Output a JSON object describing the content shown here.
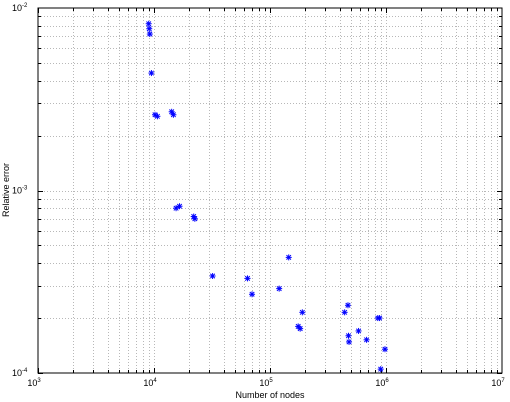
{
  "chart_data": {
    "type": "scatter",
    "xlabel": "Number of nodes",
    "ylabel": "Relative error",
    "xscale": "log",
    "yscale": "log",
    "xlim": [
      1000,
      10000000
    ],
    "ylim": [
      0.0001,
      0.01
    ],
    "grid": "on",
    "marker": "*",
    "colors": {
      "marker": "#0000ff",
      "grid": "#b8b8b8",
      "axes": "#000000"
    },
    "x_ticks": [
      {
        "base": "10",
        "exp": "3"
      },
      {
        "base": "10",
        "exp": "4"
      },
      {
        "base": "10",
        "exp": "5"
      },
      {
        "base": "10",
        "exp": "6"
      },
      {
        "base": "10",
        "exp": "7"
      }
    ],
    "y_ticks": [
      {
        "base": "10",
        "exp": "-4"
      },
      {
        "base": "10",
        "exp": "-3"
      },
      {
        "base": "10",
        "exp": "-2"
      }
    ],
    "points": [
      {
        "x": 9000,
        "y": 0.0082
      },
      {
        "x": 9100,
        "y": 0.0077
      },
      {
        "x": 9200,
        "y": 0.0072
      },
      {
        "x": 9500,
        "y": 0.0044
      },
      {
        "x": 10200,
        "y": 0.0026
      },
      {
        "x": 10700,
        "y": 0.00255
      },
      {
        "x": 14200,
        "y": 0.0027
      },
      {
        "x": 14700,
        "y": 0.0026
      },
      {
        "x": 15500,
        "y": 0.0008
      },
      {
        "x": 16600,
        "y": 0.00082
      },
      {
        "x": 22000,
        "y": 0.00072
      },
      {
        "x": 22500,
        "y": 0.0007
      },
      {
        "x": 32000,
        "y": 0.00034
      },
      {
        "x": 64000,
        "y": 0.00033
      },
      {
        "x": 70000,
        "y": 0.00027
      },
      {
        "x": 120000,
        "y": 0.00029
      },
      {
        "x": 145000,
        "y": 0.00043
      },
      {
        "x": 175000,
        "y": 0.00018
      },
      {
        "x": 182000,
        "y": 0.000175
      },
      {
        "x": 190000,
        "y": 0.000215
      },
      {
        "x": 440000,
        "y": 0.000215
      },
      {
        "x": 470000,
        "y": 0.000235
      },
      {
        "x": 475000,
        "y": 0.00016
      },
      {
        "x": 480000,
        "y": 0.000148
      },
      {
        "x": 580000,
        "y": 0.00017
      },
      {
        "x": 680000,
        "y": 0.000152
      },
      {
        "x": 850000,
        "y": 0.0002
      },
      {
        "x": 880000,
        "y": 0.0002
      },
      {
        "x": 900000,
        "y": 0.000105
      },
      {
        "x": 980000,
        "y": 0.000135
      }
    ]
  }
}
